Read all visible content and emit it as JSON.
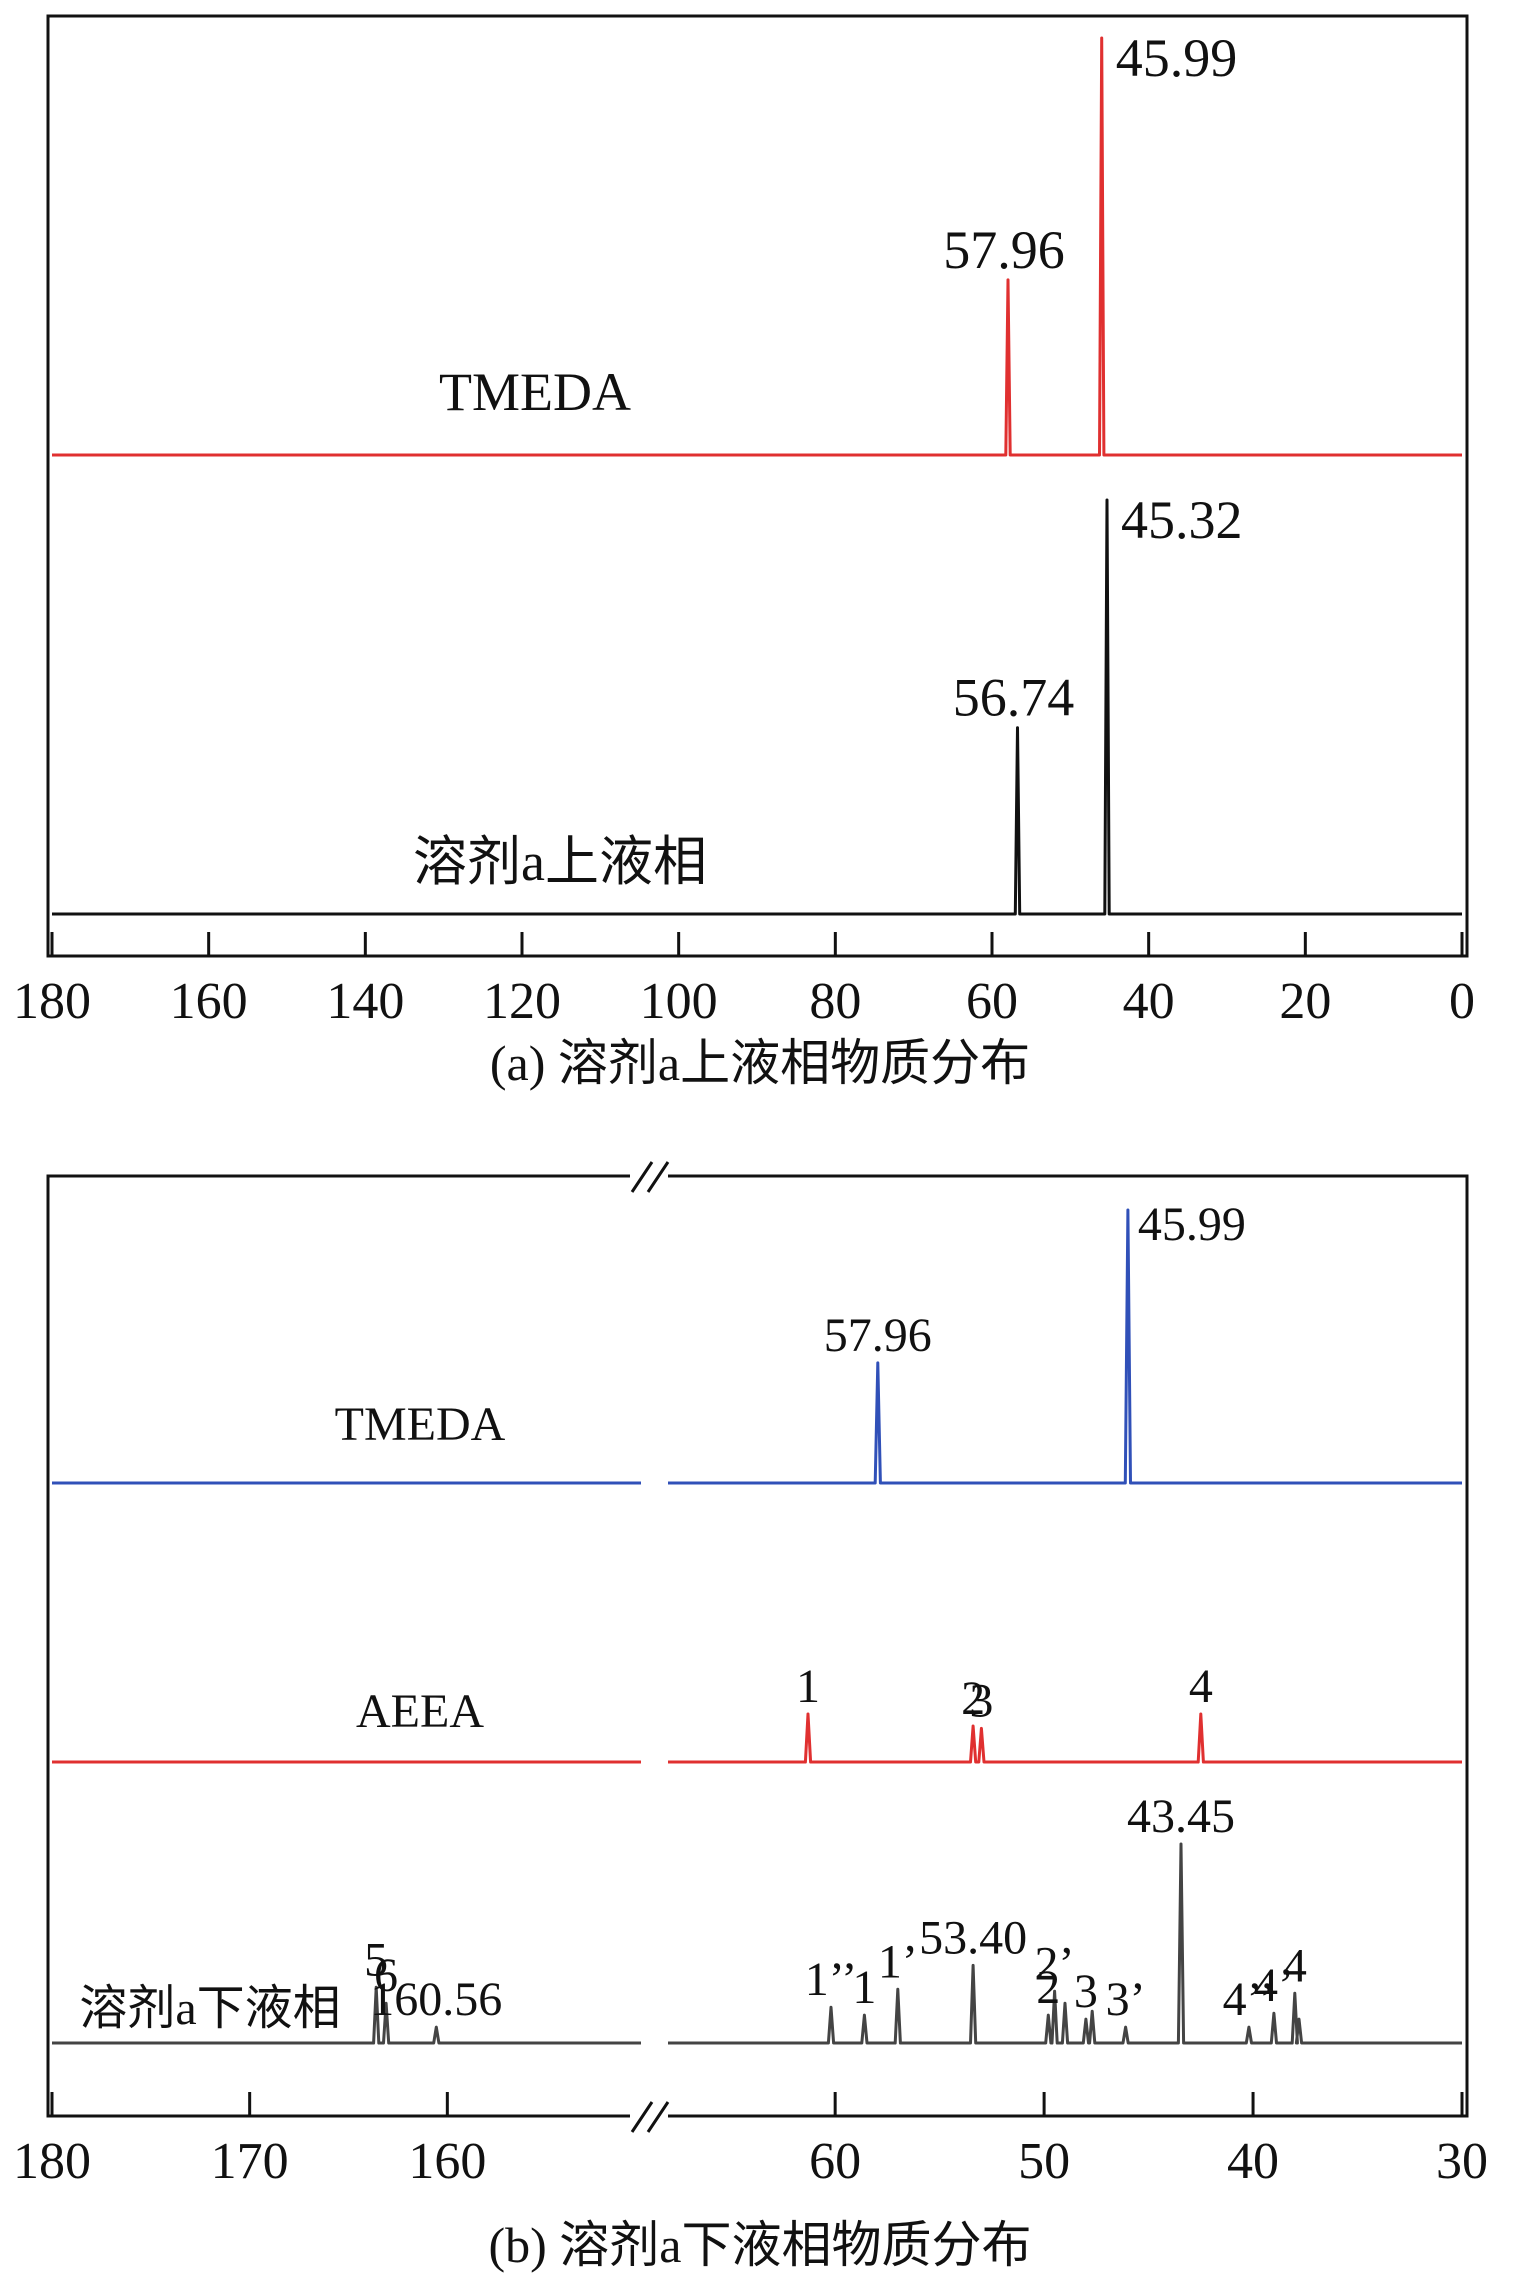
{
  "chart_data": [
    {
      "type": "line",
      "panel": "a",
      "caption": "(a) 溶剂a上液相物质分布",
      "xlim": [
        180,
        0
      ],
      "x_ticks": [
        180,
        160,
        140,
        120,
        100,
        80,
        60,
        40,
        20,
        0
      ],
      "series": [
        {
          "name": "TMEDA",
          "color": "#e03030",
          "peaks": [
            {
              "x": 57.96,
              "height": 0.42,
              "label": "57.96"
            },
            {
              "x": 45.99,
              "height": 1.0,
              "label": "45.99"
            }
          ]
        },
        {
          "name": "溶剂a上液相",
          "color": "#111111",
          "peaks": [
            {
              "x": 56.74,
              "height": 0.45,
              "label": "56.74"
            },
            {
              "x": 45.32,
              "height": 1.0,
              "label": "45.32"
            }
          ]
        }
      ]
    },
    {
      "type": "line",
      "panel": "b",
      "caption": "(b) 溶剂a下液相物质分布",
      "x_segments": [
        {
          "range": [
            180,
            150
          ]
        },
        {
          "range": [
            68,
            30
          ]
        }
      ],
      "x_ticks": [
        180,
        170,
        160,
        60,
        50,
        40,
        30
      ],
      "series": [
        {
          "name": "TMEDA",
          "color": "#3050b8",
          "peaks": [
            {
              "x": 57.96,
              "height": 0.44,
              "label": "57.96"
            },
            {
              "x": 45.99,
              "height": 1.0,
              "label": "45.99"
            }
          ]
        },
        {
          "name": "AEEA",
          "color": "#e03030",
          "peaks": [
            {
              "x": 61.3,
              "height": 1.0,
              "label": "1"
            },
            {
              "x": 53.4,
              "height": 0.75,
              "label": "2"
            },
            {
              "x": 53.0,
              "height": 0.7,
              "label": "3"
            },
            {
              "x": 42.5,
              "height": 1.0,
              "label": "4"
            }
          ]
        },
        {
          "name": "溶剂a下液相",
          "color": "#444444",
          "peaks": [
            {
              "x": 163.6,
              "height": 0.28,
              "label": "5"
            },
            {
              "x": 163.1,
              "height": 0.2,
              "label": "6"
            },
            {
              "x": 160.56,
              "height": 0.08,
              "label": "160.56"
            },
            {
              "x": 60.2,
              "height": 0.18,
              "label": "1’’"
            },
            {
              "x": 58.6,
              "height": 0.14,
              "label": "1"
            },
            {
              "x": 57.0,
              "height": 0.27,
              "label": "1’"
            },
            {
              "x": 53.4,
              "height": 0.39,
              "label": "53.40"
            },
            {
              "x": 49.8,
              "height": 0.14,
              "label": "2"
            },
            {
              "x": 49.5,
              "height": 0.26,
              "label": "2’"
            },
            {
              "x": 49.0,
              "height": 0.2,
              "label": ""
            },
            {
              "x": 48.0,
              "height": 0.12,
              "label": "3"
            },
            {
              "x": 47.7,
              "height": 0.16,
              "label": ""
            },
            {
              "x": 46.1,
              "height": 0.08,
              "label": "3’"
            },
            {
              "x": 43.45,
              "height": 1.0,
              "label": "43.45"
            },
            {
              "x": 40.2,
              "height": 0.08,
              "label": "4’’"
            },
            {
              "x": 39.0,
              "height": 0.15,
              "label": "4’"
            },
            {
              "x": 38.0,
              "height": 0.25,
              "label": "4"
            },
            {
              "x": 37.8,
              "height": 0.12,
              "label": ""
            }
          ]
        }
      ]
    }
  ]
}
